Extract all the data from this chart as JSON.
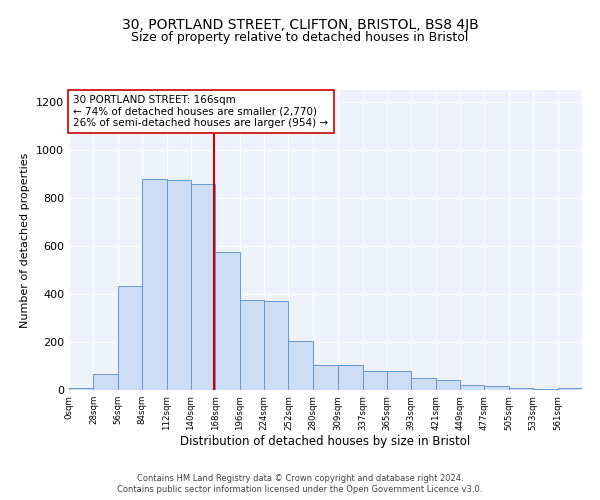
{
  "title": "30, PORTLAND STREET, CLIFTON, BRISTOL, BS8 4JB",
  "subtitle": "Size of property relative to detached houses in Bristol",
  "xlabel": "Distribution of detached houses by size in Bristol",
  "ylabel": "Number of detached properties",
  "bar_values": [
    10,
    65,
    435,
    880,
    875,
    860,
    575,
    375,
    370,
    205,
    105,
    105,
    80,
    80,
    50,
    42,
    20,
    15,
    10,
    5,
    10
  ],
  "bin_edges": [
    0,
    28,
    56,
    84,
    112,
    140,
    168,
    196,
    224,
    252,
    280,
    309,
    337,
    365,
    393,
    421,
    449,
    477,
    505,
    533,
    561,
    589
  ],
  "tick_labels": [
    "0sqm",
    "28sqm",
    "56sqm",
    "84sqm",
    "112sqm",
    "140sqm",
    "168sqm",
    "196sqm",
    "224sqm",
    "252sqm",
    "280sqm",
    "309sqm",
    "337sqm",
    "365sqm",
    "393sqm",
    "421sqm",
    "449sqm",
    "477sqm",
    "505sqm",
    "533sqm",
    "561sqm"
  ],
  "property_line_x": 166,
  "annotation_text": "30 PORTLAND STREET: 166sqm\n← 74% of detached houses are smaller (2,770)\n26% of semi-detached houses are larger (954) →",
  "bar_color": "#ccddf5",
  "bar_edge_color": "#6699cc",
  "line_color": "#cc0000",
  "bg_color": "#eef2fb",
  "ylim": [
    0,
    1250
  ],
  "yticks": [
    0,
    200,
    400,
    600,
    800,
    1000,
    1200
  ],
  "footer_text": "Contains HM Land Registry data © Crown copyright and database right 2024.\nContains public sector information licensed under the Open Government Licence v3.0.",
  "title_fontsize": 10,
  "subtitle_fontsize": 9,
  "annotation_fontsize": 7.5,
  "ylabel_fontsize": 8,
  "xlabel_fontsize": 8.5,
  "footer_fontsize": 6,
  "footer_color": "#444444"
}
